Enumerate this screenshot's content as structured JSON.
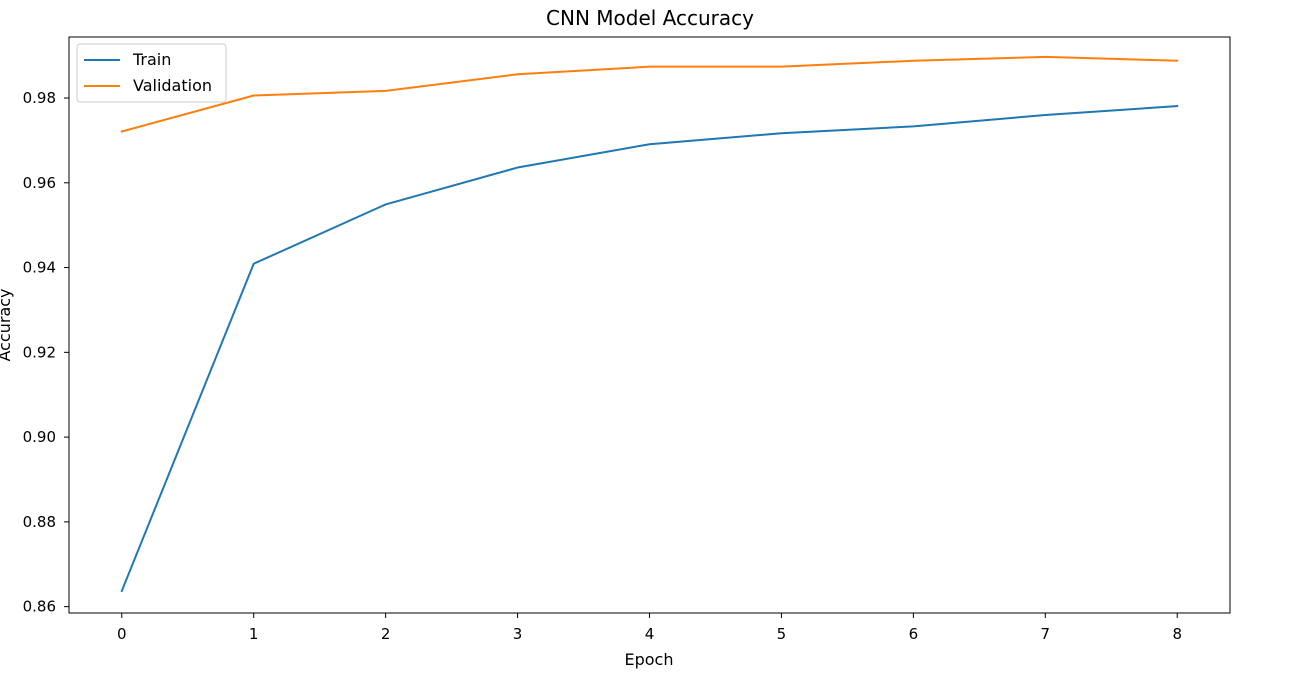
{
  "chart_data": {
    "type": "line",
    "title": "CNN Model Accuracy",
    "xlabel": "Epoch",
    "ylabel": "Accuracy",
    "x": [
      0,
      1,
      2,
      3,
      4,
      5,
      6,
      7,
      8
    ],
    "xticks": [
      "0",
      "1",
      "2",
      "3",
      "4",
      "5",
      "6",
      "7",
      "8"
    ],
    "yticks": [
      "0.86",
      "0.88",
      "0.90",
      "0.92",
      "0.94",
      "0.96",
      "0.98"
    ],
    "xlim": [
      -0.4,
      8.4
    ],
    "ylim": [
      0.8585,
      0.9944
    ],
    "grid": false,
    "legend_position": "top-left",
    "series": [
      {
        "name": "Train",
        "color": "#1f77b4",
        "values": [
          0.8637,
          0.9409,
          0.9549,
          0.9636,
          0.9691,
          0.9717,
          0.9733,
          0.976,
          0.9781
        ]
      },
      {
        "name": "Validation",
        "color": "#ff7f0e",
        "values": [
          0.9721,
          0.9806,
          0.9817,
          0.9856,
          0.9874,
          0.9874,
          0.9888,
          0.9897,
          0.9888
        ]
      }
    ]
  }
}
